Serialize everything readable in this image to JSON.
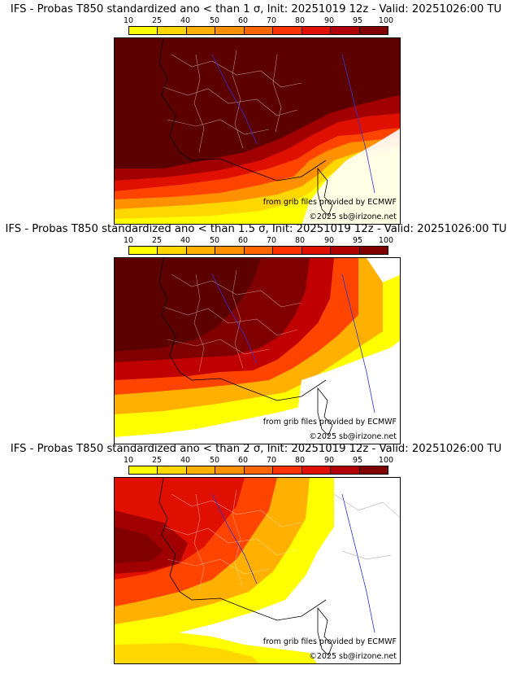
{
  "legend": {
    "labels": [
      "10",
      "25",
      "40",
      "50",
      "60",
      "70",
      "80",
      "90",
      "95",
      "100"
    ],
    "colors": [
      "#ffff00",
      "#ffd700",
      "#ffb000",
      "#ff9000",
      "#ff6600",
      "#ff3300",
      "#e01000",
      "#b00000",
      "#800000",
      "#5a0000"
    ]
  },
  "panels": [
    {
      "title": "IFS - Probas T850  standardized ano < than 1 σ, Init: 20251019 12z - Valid: 20251026:00 TU",
      "credit_source": "from grib files provided by ECMWF",
      "credit_site": "©2025 sb@irizone.net"
    },
    {
      "title": "IFS - Probas T850  standardized ano < than 1.5 σ, Init: 20251019 12z - Valid: 20251026:00 TU",
      "credit_source": "from grib files provided by ECMWF",
      "credit_site": "©2025 sb@irizone.net"
    },
    {
      "title": "IFS - Probas T850  standardized ano < than 2 σ, Init: 20251019 12z - Valid: 20251026:00 TU",
      "credit_source": "from grib files provided by ECMWF",
      "credit_site": "©2025 sb@irizone.net"
    }
  ]
}
